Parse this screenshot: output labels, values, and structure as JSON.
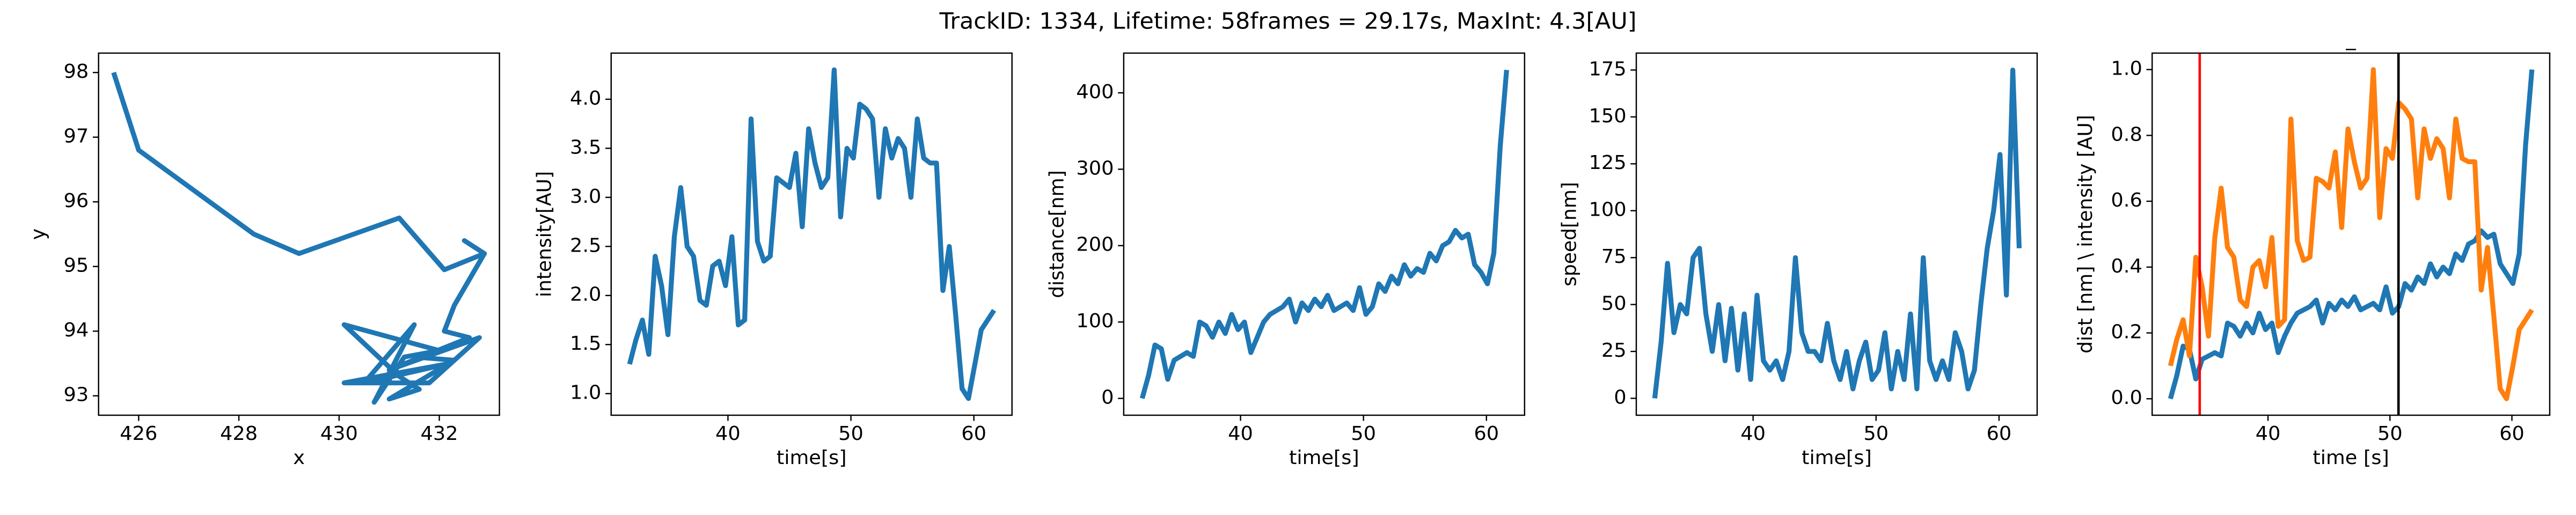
{
  "title": "TrackID: 1334, Lifetime: 58frames = 29.17s, MaxInt: 4.3[AU]",
  "chart_data": [
    {
      "type": "line",
      "xlabel": "x",
      "ylabel": "y",
      "x": [
        425.5,
        426,
        428.3,
        429.2,
        431.2,
        432.1,
        432.9,
        432.5,
        432.9,
        432.3,
        432.1,
        432.6,
        431.0,
        432.8,
        431.8,
        430.1,
        432.2,
        430.5,
        431.5,
        430.7,
        431.3,
        432,
        430.1,
        431.2,
        431.6,
        431.0,
        432.3,
        431.5
      ],
      "series": [
        {
          "color": "#1f77b4",
          "values": [
            98,
            96.8,
            95.5,
            95.2,
            95.75,
            94.95,
            95.2,
            95.4,
            95.2,
            94.4,
            94.0,
            93.9,
            93.4,
            93.9,
            93.2,
            93.2,
            93.5,
            93.2,
            94.1,
            92.9,
            93.6,
            93.7,
            94.1,
            93.3,
            93.1,
            92.95,
            93.55,
            93.6
          ]
        }
      ],
      "xlim": [
        425.2,
        433.2
      ],
      "ylim": [
        92.7,
        98.3
      ],
      "xticks": [
        426,
        428,
        430,
        432
      ],
      "yticks": [
        93,
        94,
        95,
        96,
        97,
        98
      ]
    },
    {
      "type": "line",
      "xlabel": "time[s]",
      "ylabel": "intensity[AU]",
      "x": [
        32.0,
        32.52,
        33.04,
        33.56,
        34.08,
        34.6,
        35.12,
        35.64,
        36.16,
        36.68,
        37.2,
        37.72,
        38.24,
        38.76,
        39.28,
        39.8,
        40.32,
        40.84,
        41.36,
        41.88,
        42.4,
        42.92,
        43.44,
        43.96,
        44.48,
        45.0,
        45.52,
        46.04,
        46.56,
        47.08,
        47.6,
        48.12,
        48.64,
        49.16,
        49.68,
        50.2,
        50.72,
        51.24,
        51.76,
        52.28,
        52.8,
        53.32,
        53.84,
        54.36,
        54.88,
        55.4,
        55.92,
        56.44,
        56.96,
        57.48,
        58.0,
        58.52,
        59.04,
        59.56,
        60.08,
        60.6,
        61.12,
        61.64
      ],
      "series": [
        {
          "color": "#1f77b4",
          "values": [
            1.3,
            1.55,
            1.75,
            1.4,
            2.4,
            2.1,
            1.6,
            2.6,
            3.1,
            2.5,
            2.4,
            1.95,
            1.9,
            2.3,
            2.35,
            2.1,
            2.6,
            1.7,
            1.75,
            3.8,
            2.55,
            2.35,
            2.4,
            3.2,
            3.15,
            3.1,
            3.45,
            2.7,
            3.7,
            3.35,
            3.1,
            3.2,
            4.3,
            2.8,
            3.5,
            3.4,
            3.95,
            3.9,
            3.8,
            3.0,
            3.7,
            3.4,
            3.6,
            3.5,
            3.0,
            3.8,
            3.4,
            3.35,
            3.35,
            2.05,
            2.5,
            1.8,
            1.05,
            0.95,
            1.3,
            1.65,
            1.75,
            1.85
          ]
        }
      ],
      "xlim": [
        30.5,
        63.1
      ],
      "ylim": [
        0.78,
        4.47
      ],
      "xticks": [
        40,
        50,
        60
      ],
      "yticks": [
        {
          "value": 1,
          "label": "1.0"
        },
        1.5,
        {
          "value": 2,
          "label": "2.0"
        },
        2.5,
        {
          "value": 3,
          "label": "3.0"
        },
        3.5,
        {
          "value": 4,
          "label": "4.0"
        }
      ]
    },
    {
      "type": "line",
      "xlabel": "time[s]",
      "ylabel": "distance[nm]",
      "x": [
        32.0,
        32.52,
        33.04,
        33.56,
        34.08,
        34.6,
        35.12,
        35.64,
        36.16,
        36.68,
        37.2,
        37.72,
        38.24,
        38.76,
        39.28,
        39.8,
        40.32,
        40.84,
        41.36,
        41.88,
        42.4,
        42.92,
        43.44,
        43.96,
        44.48,
        45.0,
        45.52,
        46.04,
        46.56,
        47.08,
        47.6,
        48.12,
        48.64,
        49.16,
        49.68,
        50.2,
        50.72,
        51.24,
        51.76,
        52.28,
        52.8,
        53.32,
        53.84,
        54.36,
        54.88,
        55.4,
        55.92,
        56.44,
        56.96,
        57.48,
        58.0,
        58.52,
        59.04,
        59.56,
        60.08,
        60.6,
        61.12,
        61.64
      ],
      "series": [
        {
          "color": "#1f77b4",
          "values": [
            0,
            30,
            70,
            65,
            25,
            50,
            55,
            60,
            55,
            100,
            95,
            80,
            100,
            85,
            110,
            90,
            100,
            60,
            80,
            100,
            110,
            115,
            120,
            130,
            100,
            125,
            115,
            130,
            120,
            135,
            115,
            120,
            125,
            115,
            145,
            110,
            120,
            150,
            140,
            160,
            150,
            175,
            160,
            170,
            165,
            190,
            180,
            200,
            205,
            220,
            210,
            215,
            175,
            165,
            150,
            190,
            330,
            430
          ]
        }
      ],
      "xlim": [
        30.5,
        63.1
      ],
      "ylim": [
        -22,
        452
      ],
      "xticks": [
        40,
        50,
        60
      ],
      "yticks": [
        0,
        100,
        200,
        300,
        400
      ]
    },
    {
      "type": "line",
      "xlabel": "time[s]",
      "ylabel": "speed[nm]",
      "x": [
        32.0,
        32.52,
        33.04,
        33.56,
        34.08,
        34.6,
        35.12,
        35.64,
        36.16,
        36.68,
        37.2,
        37.72,
        38.24,
        38.76,
        39.28,
        39.8,
        40.32,
        40.84,
        41.36,
        41.88,
        42.4,
        42.92,
        43.44,
        43.96,
        44.48,
        45.0,
        45.52,
        46.04,
        46.56,
        47.08,
        47.6,
        48.12,
        48.64,
        49.16,
        49.68,
        50.2,
        50.72,
        51.24,
        51.76,
        52.28,
        52.8,
        53.32,
        53.84,
        54.36,
        54.88,
        55.4,
        55.92,
        56.44,
        56.96,
        57.48,
        58.0,
        58.52,
        59.04,
        59.56,
        60.08,
        60.6,
        61.12,
        61.64
      ],
      "series": [
        {
          "color": "#1f77b4",
          "values": [
            0,
            30,
            72,
            35,
            50,
            45,
            75,
            80,
            45,
            25,
            50,
            20,
            48,
            15,
            45,
            10,
            55,
            20,
            15,
            20,
            10,
            25,
            75,
            35,
            25,
            25,
            20,
            40,
            20,
            10,
            25,
            5,
            20,
            30,
            10,
            15,
            35,
            5,
            25,
            10,
            45,
            5,
            75,
            20,
            10,
            20,
            10,
            35,
            25,
            5,
            15,
            50,
            80,
            100,
            130,
            55,
            175,
            80
          ]
        }
      ],
      "xlim": [
        30.5,
        63.1
      ],
      "ylim": [
        -9,
        184
      ],
      "xticks": [
        40,
        50,
        60
      ],
      "yticks": [
        0,
        25,
        50,
        75,
        100,
        125,
        150,
        175
      ]
    },
    {
      "type": "line",
      "title": "_",
      "xlabel": "time [s]",
      "ylabel": "dist [nm] \\ intensity [AU]",
      "x": [
        32.0,
        32.52,
        33.04,
        33.56,
        34.08,
        34.6,
        35.12,
        35.64,
        36.16,
        36.68,
        37.2,
        37.72,
        38.24,
        38.76,
        39.28,
        39.8,
        40.32,
        40.84,
        41.36,
        41.88,
        42.4,
        42.92,
        43.44,
        43.96,
        44.48,
        45.0,
        45.52,
        46.04,
        46.56,
        47.08,
        47.6,
        48.12,
        48.64,
        49.16,
        49.68,
        50.2,
        50.72,
        51.24,
        51.76,
        52.28,
        52.8,
        53.32,
        53.84,
        54.36,
        54.88,
        55.4,
        55.92,
        56.44,
        56.96,
        57.48,
        58.0,
        58.52,
        59.04,
        59.56,
        60.08,
        60.6,
        61.12,
        61.64
      ],
      "series": [
        {
          "color": "#1f77b4",
          "values": [
            0,
            0.07,
            0.16,
            0.15,
            0.06,
            0.12,
            0.13,
            0.14,
            0.13,
            0.23,
            0.22,
            0.19,
            0.23,
            0.2,
            0.26,
            0.21,
            0.23,
            0.14,
            0.19,
            0.23,
            0.26,
            0.27,
            0.28,
            0.3,
            0.23,
            0.29,
            0.27,
            0.3,
            0.28,
            0.31,
            0.27,
            0.28,
            0.29,
            0.27,
            0.34,
            0.26,
            0.28,
            0.35,
            0.33,
            0.37,
            0.35,
            0.41,
            0.37,
            0.4,
            0.38,
            0.44,
            0.42,
            0.47,
            0.48,
            0.51,
            0.49,
            0.5,
            0.41,
            0.38,
            0.35,
            0.44,
            0.77,
            1.0
          ]
        },
        {
          "color": "#ff7f0e",
          "values": [
            0.1,
            0.18,
            0.24,
            0.13,
            0.43,
            0.34,
            0.19,
            0.49,
            0.64,
            0.46,
            0.43,
            0.3,
            0.28,
            0.4,
            0.42,
            0.34,
            0.49,
            0.22,
            0.24,
            0.85,
            0.48,
            0.42,
            0.43,
            0.67,
            0.66,
            0.64,
            0.75,
            0.52,
            0.82,
            0.72,
            0.64,
            0.67,
            1.0,
            0.55,
            0.76,
            0.73,
            0.9,
            0.88,
            0.85,
            0.61,
            0.82,
            0.73,
            0.79,
            0.76,
            0.61,
            0.85,
            0.73,
            0.72,
            0.72,
            0.33,
            0.46,
            0.25,
            0.03,
            0,
            0.1,
            0.21,
            0.24,
            0.27
          ]
        }
      ],
      "vlines": [
        {
          "x": 34.4,
          "color": "red"
        },
        {
          "x": 50.7,
          "color": "black"
        }
      ],
      "xlim": [
        30.5,
        63.1
      ],
      "ylim": [
        -0.05,
        1.05
      ],
      "xticks": [
        40,
        50,
        60
      ],
      "yticks": [
        {
          "value": 0,
          "label": "0.0"
        },
        0.2,
        0.4,
        0.6,
        0.8,
        {
          "value": 1,
          "label": "1.0"
        }
      ]
    }
  ]
}
